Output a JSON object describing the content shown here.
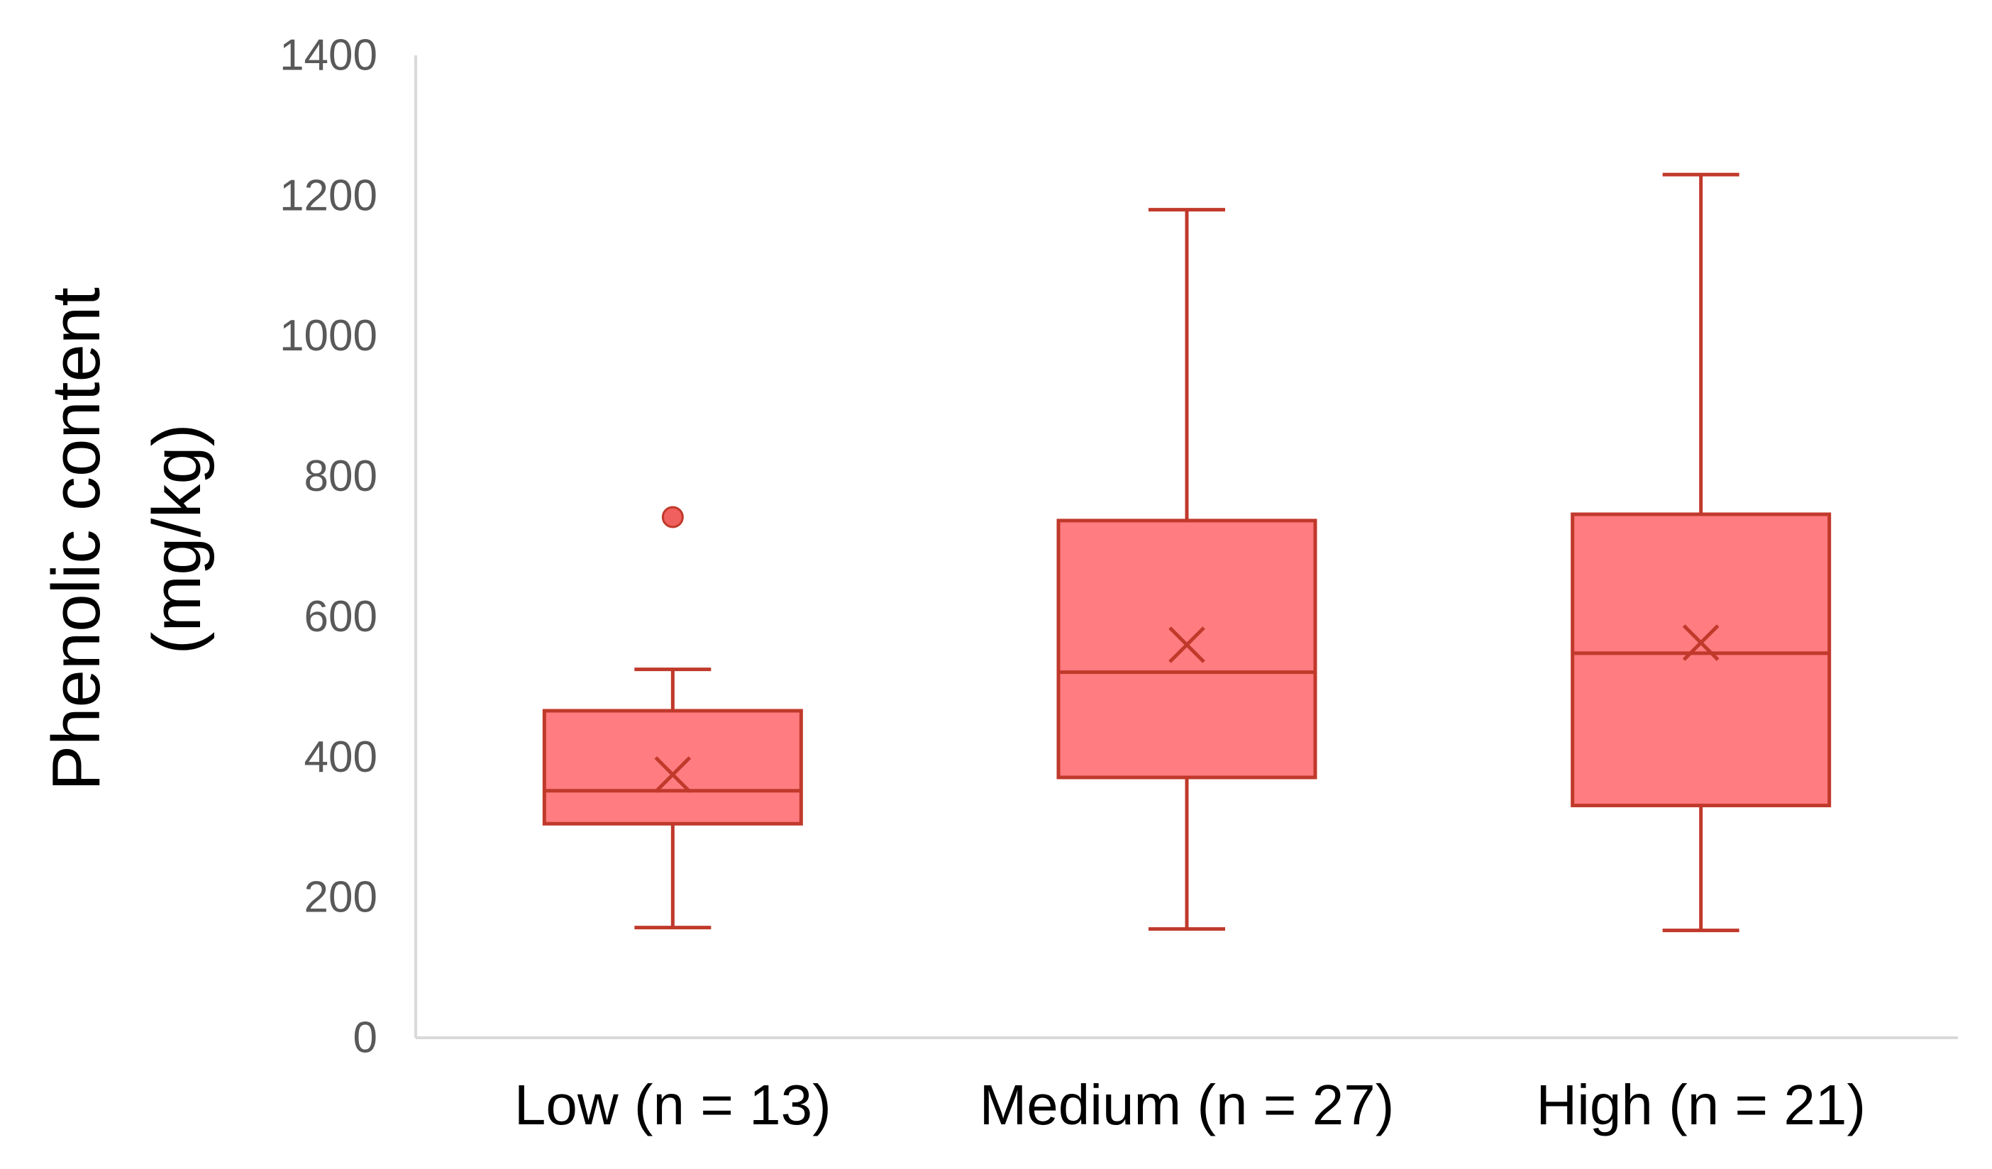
{
  "chart_data": {
    "type": "box",
    "title": "",
    "xlabel": "",
    "ylabel_lines": [
      "Phenolic content",
      "(mg/kg)"
    ],
    "ylim": [
      0,
      1400
    ],
    "yticks": [
      0,
      200,
      400,
      600,
      800,
      1000,
      1200,
      1400
    ],
    "ytick_labels": [
      "0",
      "200",
      "400",
      "600",
      "800",
      "1000",
      "1200",
      "1400"
    ],
    "grid": false,
    "legend": "none",
    "categories": [
      "Low (n = 13)",
      "Medium (n = 27)",
      "High (n = 21)"
    ],
    "boxes": [
      {
        "category": "Low (n = 13)",
        "min": 157,
        "q1": 305,
        "median": 352,
        "q3": 466,
        "max": 525,
        "mean": 375,
        "outliers": [
          742
        ]
      },
      {
        "category": "Medium (n = 27)",
        "min": 155,
        "q1": 371,
        "median": 521,
        "q3": 737,
        "max": 1180,
        "mean": 560,
        "outliers": []
      },
      {
        "category": "High (n = 21)",
        "min": 153,
        "q1": 331,
        "median": 548,
        "q3": 746,
        "max": 1230,
        "mean": 563,
        "outliers": []
      }
    ],
    "colors": {
      "box_fill": "#ff7c80",
      "box_stroke": "#c0392b",
      "outlier_fill": "#f0605e",
      "axis": "#d9d9d9"
    }
  }
}
